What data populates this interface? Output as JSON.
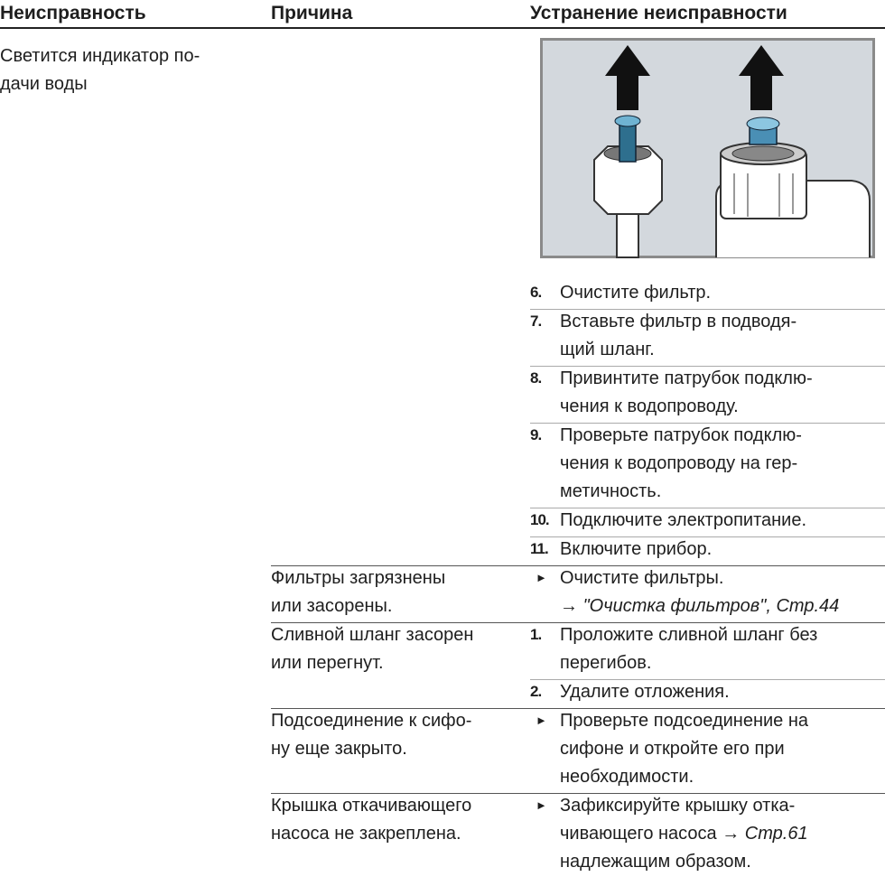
{
  "header": {
    "fault": "Неисправность",
    "cause": "Причина",
    "remedy": "Устранение неисправности"
  },
  "fault": {
    "lines": [
      "Светится индикатор по-",
      "дачи воды"
    ]
  },
  "rows": [
    {
      "steps": [
        {
          "marker": "6.",
          "lines": [
            "Очистите фильтр."
          ]
        },
        {
          "marker": "7.",
          "lines": [
            "Вставьте фильтр в подводя-",
            "щий шланг."
          ]
        },
        {
          "marker": "8.",
          "lines": [
            "Привинтите патрубок подклю-",
            "чения к водопроводу."
          ]
        },
        {
          "marker": "9.",
          "lines": [
            "Проверьте патрубок подклю-",
            "чения к водопроводу на гер-",
            "метичность."
          ]
        },
        {
          "marker": "10.",
          "lines": [
            "Подключите электропитание."
          ]
        },
        {
          "marker": "11.",
          "lines": [
            "Включите прибор."
          ]
        }
      ]
    },
    {
      "cause": [
        "Фильтры загрязнены",
        "или засорены."
      ],
      "steps": [
        {
          "marker": "►",
          "lines": [
            "Очистите фильтры.",
            [
              {
                "text": "→ "
              },
              {
                "text": "\"Очистка фильтров\", Стр.44",
                "italic": true
              }
            ]
          ]
        }
      ]
    },
    {
      "cause": [
        "Сливной шланг засорен",
        "или перегнут."
      ],
      "steps": [
        {
          "marker": "1.",
          "lines": [
            "Проложите сливной шланг без",
            "перегибов."
          ]
        },
        {
          "marker": "2.",
          "lines": [
            "Удалите отложения."
          ]
        }
      ]
    },
    {
      "cause": [
        "Подсоединение к сифо-",
        "ну еще закрыто."
      ],
      "steps": [
        {
          "marker": "►",
          "lines": [
            "Проверьте подсоединение на",
            "сифоне и откройте его при",
            "необходимости."
          ]
        }
      ]
    },
    {
      "cause": [
        "Крышка откачивающего",
        "насоса не закреплена."
      ],
      "steps": [
        {
          "marker": "►",
          "lines": [
            "Зафиксируйте крышку  отка-",
            [
              {
                "text": "чивающего насоса → "
              },
              {
                "text": "Стр.61",
                "italic": true
              }
            ],
            "надлежащим образом."
          ]
        }
      ]
    }
  ]
}
